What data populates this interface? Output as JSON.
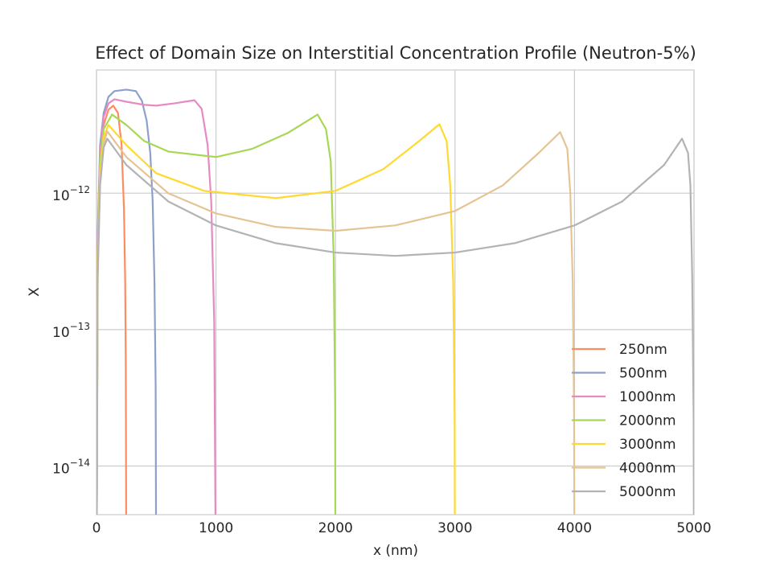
{
  "chart_data": {
    "type": "line",
    "title": "Effect of Domain Size on Interstitial Concentration Profile (Neutron-5%)",
    "x_label": "x (nm)",
    "y_label": "X",
    "yscale": "log",
    "grid": true,
    "legend_position": "lower right",
    "xlim": [
      0,
      5000
    ],
    "xticks": [
      0,
      1000,
      2000,
      3000,
      4000,
      5000
    ],
    "ylim": [
      4.4e-15,
      8e-12
    ],
    "yticks": [
      {
        "value": 1e-14,
        "label": "10−14"
      },
      {
        "value": 1e-13,
        "label": "10−13"
      },
      {
        "value": 1e-12,
        "label": "10−12"
      }
    ],
    "series": [
      {
        "name": "250nm",
        "color": "#fc8d62",
        "x": [
          0,
          10,
          30,
          60,
          100,
          140,
          180,
          210,
          230,
          240,
          245,
          250
        ],
        "values": [
          1e-15,
          4.44e-13,
          1.72e-12,
          3.16e-12,
          4.09e-12,
          4.38e-12,
          3.87e-12,
          2.25e-12,
          7.6e-13,
          2.25e-13,
          5.8e-14,
          1e-15
        ]
      },
      {
        "name": "500nm",
        "color": "#8da0cb",
        "x": [
          0,
          10,
          30,
          60,
          100,
          150,
          250,
          330,
          380,
          420,
          450,
          470,
          485,
          495,
          500
        ],
        "values": [
          1e-15,
          5.1e-13,
          2.25e-12,
          3.87e-12,
          5.08e-12,
          5.6e-12,
          5.74e-12,
          5.6e-12,
          4.75e-12,
          3.39e-12,
          1.97e-12,
          8.7e-13,
          2.25e-13,
          3.9e-14,
          1e-15
        ]
      },
      {
        "name": "1000nm",
        "color": "#e78ac3",
        "x": [
          0,
          10,
          30,
          60,
          100,
          150,
          250,
          400,
          500,
          650,
          820,
          880,
          930,
          960,
          985,
          1000
        ],
        "values": [
          1e-15,
          4.44e-13,
          1.97e-12,
          3.62e-12,
          4.55e-12,
          4.88e-12,
          4.68e-12,
          4.44e-12,
          4.38e-12,
          4.55e-12,
          4.8e-12,
          4.15e-12,
          2.25e-12,
          8.7e-13,
          1.15e-13,
          1e-15
        ]
      },
      {
        "name": "2000nm",
        "color": "#a6d854",
        "x": [
          0,
          10,
          30,
          60,
          130,
          250,
          400,
          600,
          1000,
          1300,
          1600,
          1850,
          1920,
          1960,
          1985,
          1997,
          2000
        ],
        "values": [
          1e-15,
          3.38e-13,
          1.72e-12,
          2.95e-12,
          3.77e-12,
          3.16e-12,
          2.41e-12,
          2.02e-12,
          1.84e-12,
          2.11e-12,
          2.76e-12,
          3.77e-12,
          2.95e-12,
          1.72e-12,
          3.38e-13,
          2.9e-14,
          1e-15
        ]
      },
      {
        "name": "3000nm",
        "color": "#ffd92f",
        "x": [
          0,
          10,
          30,
          60,
          100,
          250,
          500,
          900,
          1500,
          2000,
          2400,
          2700,
          2870,
          2930,
          2960,
          2985,
          2997,
          3000
        ],
        "values": [
          1e-15,
          2.95e-13,
          1.4e-12,
          2.58e-12,
          3.16e-12,
          2.25e-12,
          1.4e-12,
          1.04e-12,
          9.2e-13,
          1.04e-12,
          1.5e-12,
          2.41e-12,
          3.2e-12,
          2.41e-12,
          1.14e-12,
          2.25e-13,
          2.2e-14,
          1e-15
        ]
      },
      {
        "name": "4000nm",
        "color": "#e5c494",
        "x": [
          0,
          10,
          30,
          60,
          90,
          250,
          600,
          1000,
          1500,
          2000,
          2500,
          3000,
          3400,
          3700,
          3880,
          3940,
          3965,
          3985,
          3997,
          4000
        ],
        "values": [
          1e-15,
          2.58e-13,
          1.23e-12,
          2.32e-12,
          2.84e-12,
          1.84e-12,
          1e-12,
          7.1e-13,
          5.66e-13,
          5.3e-13,
          5.8e-13,
          7.4e-13,
          1.14e-12,
          1.97e-12,
          2.8e-12,
          2.11e-12,
          1e-12,
          2.25e-13,
          2.2e-14,
          1e-15
        ]
      },
      {
        "name": "5000nm",
        "color": "#b3b3b3",
        "x": [
          0,
          10,
          30,
          60,
          90,
          250,
          600,
          1000,
          1500,
          2000,
          2500,
          3000,
          3500,
          4000,
          4400,
          4750,
          4900,
          4950,
          4970,
          4985,
          4997,
          5000
        ],
        "values": [
          1e-15,
          2.41e-13,
          1.14e-12,
          2.16e-12,
          2.51e-12,
          1.61e-12,
          8.7e-13,
          5.8e-13,
          4.3e-13,
          3.67e-13,
          3.47e-13,
          3.67e-13,
          4.3e-13,
          5.8e-13,
          8.7e-13,
          1.61e-12,
          2.51e-12,
          1.97e-12,
          1.14e-12,
          2.41e-13,
          2.2e-14,
          1e-15
        ]
      }
    ]
  }
}
